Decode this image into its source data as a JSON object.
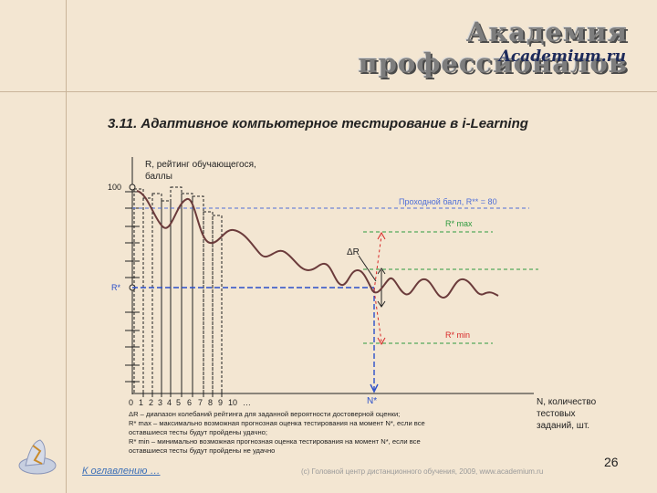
{
  "header": {
    "brand_ru": "Академия профессионалов",
    "brand_en": "Academium.ru"
  },
  "slide": {
    "title": "3.11. Адаптивное компьютерное тестирование в i-Learning"
  },
  "diagram": {
    "y_axis_label_1": "R, рейтинг обучающегося,",
    "y_axis_label_2": "баллы",
    "y_tick_100": "100",
    "y_tick_r_star": "R*",
    "x_axis_label_1": "N, количество",
    "x_axis_label_2": "тестовых",
    "x_axis_label_3": "заданий, шт.",
    "x_ticks": [
      "0",
      "1",
      "2",
      "3",
      "4",
      "5",
      "6",
      "7",
      "8",
      "9",
      "10",
      "…"
    ],
    "n_star": "N*",
    "pass_score": "Проходной балл, R** = 80",
    "r_max": "R* max",
    "r_min": "R* min",
    "delta_r": "ΔR",
    "legend": [
      "ΔR – диапазон колебаний рейтинга для заданной вероятности достоверной оценки;",
      "R* max – максимально возможная прогнозная оценка тестирования на момент N*, если все",
      "оставшиеся тесты будут пройдены удачно;",
      "R* min – минимально возможная прогнозная оценка тестирования на момент N*, если все",
      "оставшиеся тесты будут пройдены не удачно"
    ],
    "colors": {
      "curve": "#6b3b3b",
      "grid": "#222222",
      "pass_line": "#4f6fd8",
      "r_star_line": "#2b4fc9",
      "green_lines": "#2e9a3e",
      "red_arrows": "#d82828"
    }
  },
  "footer": {
    "toc_link": "К оглавлению …",
    "page_number": "26",
    "copyright": "(с) Головной центр дистанционного обучения, 2009, www.academium.ru"
  }
}
